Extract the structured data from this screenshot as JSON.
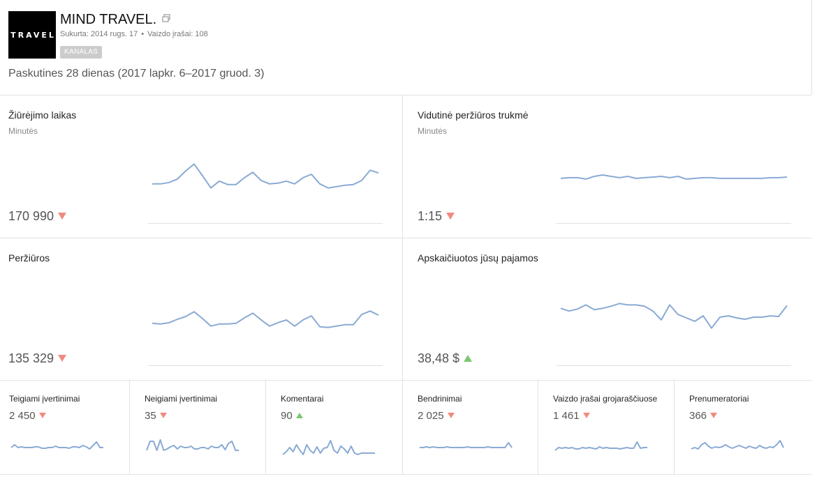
{
  "channel": {
    "avatar_text": "TRAVEL",
    "title": "MIND TRAVEL.",
    "created": "Sukurta: 2014 rugs. 17",
    "videos": "Vaizdo įrašai: 108",
    "badge": "KANALAS",
    "period": "Paskutines 28 dienas (2017 lapkr. 6–2017 gruod. 3)"
  },
  "colors": {
    "line": "#8aaad4",
    "down": "#ef8b80",
    "up": "#7cc771"
  },
  "big_metrics": [
    {
      "title": "Žiūrėjimo laikas",
      "subtitle": "Minutės",
      "value": "170 990",
      "trend": "down",
      "series": [
        62,
        62,
        60,
        55,
        43,
        33,
        50,
        68,
        58,
        63,
        63,
        53,
        45,
        57,
        62,
        61,
        58,
        62,
        53,
        48,
        62,
        68,
        66,
        64,
        63,
        57,
        42,
        46
      ]
    },
    {
      "title": "Vidutinė peržiūros trukmė",
      "subtitle": "Minutės",
      "value": "1:15",
      "trend": "down",
      "series": [
        54,
        53,
        53,
        55,
        51,
        49,
        51,
        53,
        51,
        54,
        53,
        52,
        51,
        53,
        51,
        55,
        54,
        53,
        53,
        54,
        54,
        54,
        54,
        54,
        54,
        53,
        53,
        52
      ]
    },
    {
      "title": "Peržiūros",
      "subtitle": "",
      "value": "135 329",
      "trend": "down",
      "series": [
        58,
        59,
        57,
        52,
        48,
        41,
        51,
        62,
        59,
        59,
        58,
        50,
        43,
        53,
        62,
        57,
        53,
        62,
        53,
        47,
        63,
        64,
        62,
        60,
        60,
        45,
        40,
        46
      ]
    },
    {
      "title": "Apskaičiuotos jūsų pajamos",
      "subtitle": "",
      "value": "38,48 $",
      "trend": "up",
      "series": [
        36,
        40,
        37,
        31,
        38,
        36,
        33,
        29,
        31,
        31,
        33,
        40,
        53,
        31,
        45,
        50,
        55,
        47,
        65,
        49,
        47,
        50,
        52,
        49,
        49,
        47,
        48,
        32
      ]
    }
  ],
  "small_metrics": [
    {
      "title": "Teigiami įvertinimai",
      "value": "2 450",
      "trend": "down",
      "series": [
        34,
        38,
        34,
        35,
        34,
        34,
        34,
        35,
        35,
        33,
        33,
        34,
        34,
        36,
        34,
        34,
        34,
        33,
        35,
        35,
        34,
        37,
        35,
        32,
        37,
        42,
        34,
        34
      ]
    },
    {
      "title": "Neigiami įvertinimai",
      "value": "35",
      "trend": "down",
      "series": [
        30,
        43,
        43,
        30,
        45,
        30,
        32,
        35,
        37,
        32,
        36,
        34,
        34,
        36,
        32,
        32,
        34,
        34,
        32,
        36,
        34,
        34,
        38,
        31,
        40,
        43,
        30,
        30
      ]
    },
    {
      "title": "Komentarai",
      "value": "90",
      "trend": "up",
      "series": [
        24,
        28,
        34,
        28,
        38,
        30,
        24,
        38,
        30,
        26,
        35,
        26,
        33,
        34,
        44,
        30,
        26,
        36,
        32,
        26,
        36,
        26,
        24,
        26,
        26,
        26,
        26,
        26
      ]
    },
    {
      "title": "Bendrinimai",
      "value": "2 025",
      "trend": "down",
      "series": [
        34,
        34,
        35,
        34,
        35,
        34,
        34,
        34,
        35,
        34,
        34,
        34,
        34,
        34,
        35,
        34,
        34,
        34,
        34,
        34,
        35,
        34,
        34,
        34,
        34,
        34,
        41,
        34
      ]
    },
    {
      "title": "Vaizdo įrašai grojaraščiuose",
      "value": "1 461",
      "trend": "down",
      "series": [
        30,
        34,
        33,
        34,
        33,
        34,
        32,
        32,
        34,
        33,
        34,
        33,
        32,
        35,
        33,
        34,
        33,
        33,
        33,
        32,
        33,
        34,
        33,
        33,
        42,
        33,
        34,
        34
      ]
    },
    {
      "title": "Prenumeratoriai",
      "value": "366",
      "trend": "down",
      "series": [
        32,
        34,
        32,
        38,
        41,
        36,
        33,
        35,
        34,
        35,
        38,
        35,
        33,
        35,
        37,
        35,
        33,
        36,
        34,
        33,
        37,
        34,
        33,
        35,
        34,
        38,
        44,
        34
      ]
    }
  ]
}
